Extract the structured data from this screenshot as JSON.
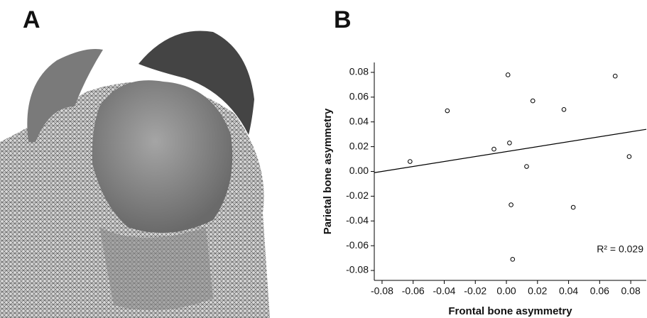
{
  "panel_labels": [
    "A",
    "B"
  ],
  "chart_data": {
    "type": "scatter",
    "xlabel": "Frontal bone asymmetry",
    "ylabel": "Parietal bone asymmetry",
    "annotation": "R² = 0.029",
    "x": [
      -0.062,
      -0.038,
      -0.008,
      0.002,
      0.001,
      0.017,
      0.013,
      0.003,
      0.004,
      0.037,
      0.043,
      0.07,
      0.079
    ],
    "y": [
      0.008,
      0.049,
      0.018,
      0.023,
      0.078,
      0.057,
      0.004,
      -0.027,
      -0.071,
      0.05,
      -0.029,
      0.077,
      0.012
    ],
    "trendline": {
      "x": [
        -0.085,
        0.09
      ],
      "y": [
        -0.001,
        0.034
      ]
    },
    "xlim": [
      -0.085,
      0.09
    ],
    "ylim": [
      -0.088,
      0.088
    ],
    "xticks": [
      -0.08,
      -0.06,
      -0.04,
      -0.02,
      {
        "value": 0,
        "label": "0.00"
      },
      0.02,
      0.04,
      0.06,
      0.08
    ],
    "yticks": [
      -0.08,
      -0.06,
      -0.04,
      -0.02,
      {
        "value": 0,
        "label": "0.00"
      },
      0.02,
      0.04,
      0.06,
      0.08
    ],
    "color": "#000000"
  }
}
